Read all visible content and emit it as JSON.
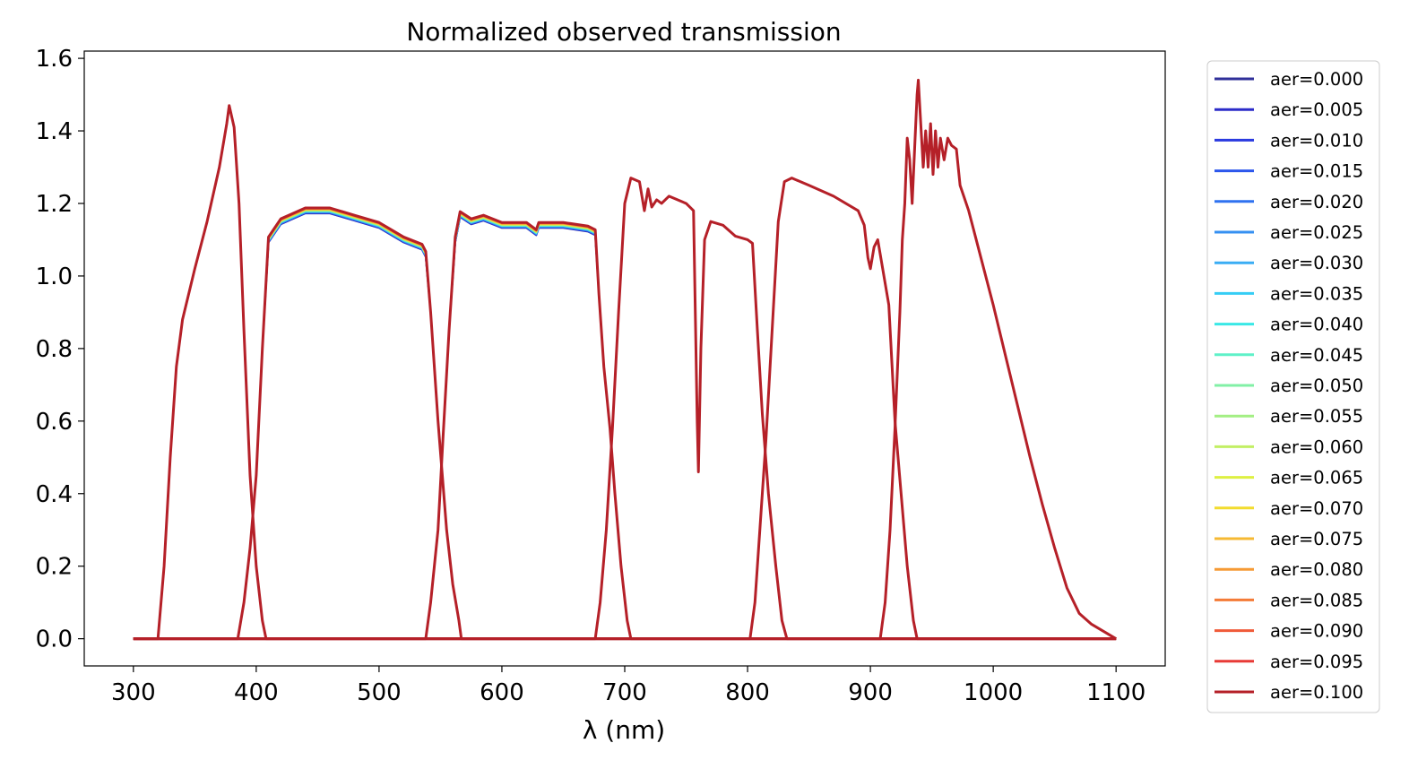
{
  "chart_data": {
    "type": "line",
    "title": "Normalized observed transmission",
    "xlabel": "λ (nm)",
    "ylabel": "",
    "xlim": [
      260,
      1140
    ],
    "ylim": [
      -0.075,
      1.62
    ],
    "xticks": [
      300,
      400,
      500,
      600,
      700,
      800,
      900,
      1000,
      1100
    ],
    "yticks": [
      0.0,
      0.2,
      0.4,
      0.6,
      0.8,
      1.0,
      1.2,
      1.4,
      1.6
    ],
    "xtick_labels": [
      "300",
      "400",
      "500",
      "600",
      "700",
      "800",
      "900",
      "1000",
      "1100"
    ],
    "ytick_labels": [
      "0.0",
      "0.2",
      "0.4",
      "0.6",
      "0.8",
      "1.0",
      "1.2",
      "1.4",
      "1.6"
    ],
    "grid": false,
    "legend_position": "outside-right",
    "legend": [
      {
        "name": "aer=0.000",
        "color": "#30309a"
      },
      {
        "name": "aer=0.005",
        "color": "#2c2cc9"
      },
      {
        "name": "aer=0.010",
        "color": "#2a3ae0"
      },
      {
        "name": "aer=0.015",
        "color": "#2c56ec"
      },
      {
        "name": "aer=0.020",
        "color": "#2f72f0"
      },
      {
        "name": "aer=0.025",
        "color": "#3690f2"
      },
      {
        "name": "aer=0.030",
        "color": "#3aadf4"
      },
      {
        "name": "aer=0.035",
        "color": "#35cdf5"
      },
      {
        "name": "aer=0.040",
        "color": "#3ae8e6"
      },
      {
        "name": "aer=0.045",
        "color": "#5ff1c8"
      },
      {
        "name": "aer=0.050",
        "color": "#82f0a6"
      },
      {
        "name": "aer=0.055",
        "color": "#a3ef84"
      },
      {
        "name": "aer=0.060",
        "color": "#c2ef64"
      },
      {
        "name": "aer=0.065",
        "color": "#def042"
      },
      {
        "name": "aer=0.070",
        "color": "#f2dc2e"
      },
      {
        "name": "aer=0.075",
        "color": "#f6b933"
      },
      {
        "name": "aer=0.080",
        "color": "#f69a35"
      },
      {
        "name": "aer=0.085",
        "color": "#f47b37"
      },
      {
        "name": "aer=0.090",
        "color": "#f05a38"
      },
      {
        "name": "aer=0.095",
        "color": "#e83a36"
      },
      {
        "name": "aer=0.100",
        "color": "#b52028"
      }
    ],
    "curves": [
      {
        "band": "u",
        "points": [
          [
            300,
            0
          ],
          [
            320,
            0
          ],
          [
            325,
            0.2
          ],
          [
            330,
            0.5
          ],
          [
            335,
            0.75
          ],
          [
            340,
            0.88
          ],
          [
            350,
            1.02
          ],
          [
            360,
            1.15
          ],
          [
            370,
            1.3
          ],
          [
            376,
            1.42
          ],
          [
            378,
            1.47
          ],
          [
            382,
            1.41
          ],
          [
            386,
            1.2
          ],
          [
            390,
            0.85
          ],
          [
            395,
            0.45
          ],
          [
            400,
            0.2
          ],
          [
            405,
            0.05
          ],
          [
            408,
            0
          ],
          [
            1100,
            0
          ]
        ]
      },
      {
        "band": "g",
        "points": [
          [
            300,
            0
          ],
          [
            385,
            0
          ],
          [
            390,
            0.1
          ],
          [
            395,
            0.25
          ],
          [
            400,
            0.45
          ],
          [
            405,
            0.8
          ],
          [
            410,
            1.1
          ],
          [
            420,
            1.15
          ],
          [
            440,
            1.18
          ],
          [
            460,
            1.18
          ],
          [
            480,
            1.16
          ],
          [
            500,
            1.14
          ],
          [
            520,
            1.1
          ],
          [
            535,
            1.08
          ],
          [
            538,
            1.06
          ],
          [
            542,
            0.9
          ],
          [
            548,
            0.6
          ],
          [
            555,
            0.3
          ],
          [
            560,
            0.15
          ],
          [
            565,
            0.05
          ],
          [
            567,
            0
          ],
          [
            1100,
            0
          ]
        ]
      },
      {
        "band": "r",
        "points": [
          [
            300,
            0
          ],
          [
            538,
            0
          ],
          [
            542,
            0.1
          ],
          [
            548,
            0.3
          ],
          [
            552,
            0.55
          ],
          [
            557,
            0.85
          ],
          [
            562,
            1.1
          ],
          [
            566,
            1.17
          ],
          [
            575,
            1.15
          ],
          [
            585,
            1.16
          ],
          [
            600,
            1.14
          ],
          [
            620,
            1.14
          ],
          [
            628,
            1.12
          ],
          [
            630,
            1.14
          ],
          [
            650,
            1.14
          ],
          [
            670,
            1.13
          ],
          [
            676,
            1.12
          ],
          [
            679,
            0.95
          ],
          [
            683,
            0.75
          ],
          [
            688,
            0.58
          ],
          [
            692,
            0.4
          ],
          [
            697,
            0.2
          ],
          [
            702,
            0.05
          ],
          [
            705,
            0
          ],
          [
            1100,
            0
          ]
        ]
      },
      {
        "band": "i",
        "points": [
          [
            300,
            0
          ],
          [
            676,
            0
          ],
          [
            680,
            0.1
          ],
          [
            685,
            0.3
          ],
          [
            690,
            0.58
          ],
          [
            695,
            0.9
          ],
          [
            700,
            1.2
          ],
          [
            705,
            1.27
          ],
          [
            712,
            1.26
          ],
          [
            716,
            1.18
          ],
          [
            719,
            1.24
          ],
          [
            722,
            1.19
          ],
          [
            726,
            1.21
          ],
          [
            730,
            1.2
          ],
          [
            736,
            1.22
          ],
          [
            750,
            1.2
          ],
          [
            756,
            1.18
          ],
          [
            759,
            0.6
          ],
          [
            760,
            0.46
          ],
          [
            762,
            0.8
          ],
          [
            765,
            1.1
          ],
          [
            770,
            1.15
          ],
          [
            780,
            1.14
          ],
          [
            790,
            1.11
          ],
          [
            800,
            1.1
          ],
          [
            804,
            1.09
          ],
          [
            808,
            0.85
          ],
          [
            812,
            0.62
          ],
          [
            817,
            0.4
          ],
          [
            823,
            0.2
          ],
          [
            828,
            0.05
          ],
          [
            832,
            0
          ],
          [
            1100,
            0
          ]
        ]
      },
      {
        "band": "z",
        "points": [
          [
            300,
            0
          ],
          [
            802,
            0
          ],
          [
            806,
            0.1
          ],
          [
            810,
            0.3
          ],
          [
            815,
            0.55
          ],
          [
            820,
            0.85
          ],
          [
            825,
            1.15
          ],
          [
            830,
            1.26
          ],
          [
            836,
            1.27
          ],
          [
            850,
            1.25
          ],
          [
            870,
            1.22
          ],
          [
            890,
            1.18
          ],
          [
            895,
            1.14
          ],
          [
            898,
            1.05
          ],
          [
            900,
            1.02
          ],
          [
            903,
            1.08
          ],
          [
            906,
            1.1
          ],
          [
            909,
            1.04
          ],
          [
            912,
            0.98
          ],
          [
            915,
            0.92
          ],
          [
            920,
            0.6
          ],
          [
            925,
            0.4
          ],
          [
            930,
            0.2
          ],
          [
            935,
            0.05
          ],
          [
            938,
            0
          ],
          [
            1100,
            0
          ]
        ]
      },
      {
        "band": "y",
        "points": [
          [
            300,
            0
          ],
          [
            908,
            0
          ],
          [
            912,
            0.1
          ],
          [
            916,
            0.3
          ],
          [
            920,
            0.58
          ],
          [
            924,
            0.9
          ],
          [
            926,
            1.1
          ],
          [
            928,
            1.2
          ],
          [
            930,
            1.38
          ],
          [
            932,
            1.32
          ],
          [
            934,
            1.2
          ],
          [
            936,
            1.35
          ],
          [
            938,
            1.5
          ],
          [
            939,
            1.54
          ],
          [
            941,
            1.42
          ],
          [
            943,
            1.3
          ],
          [
            945,
            1.4
          ],
          [
            947,
            1.3
          ],
          [
            949,
            1.42
          ],
          [
            951,
            1.28
          ],
          [
            953,
            1.4
          ],
          [
            955,
            1.3
          ],
          [
            957,
            1.38
          ],
          [
            960,
            1.32
          ],
          [
            963,
            1.38
          ],
          [
            966,
            1.36
          ],
          [
            970,
            1.35
          ],
          [
            973,
            1.25
          ],
          [
            976,
            1.22
          ],
          [
            980,
            1.18
          ],
          [
            990,
            1.05
          ],
          [
            1000,
            0.92
          ],
          [
            1010,
            0.78
          ],
          [
            1020,
            0.64
          ],
          [
            1030,
            0.5
          ],
          [
            1040,
            0.37
          ],
          [
            1050,
            0.25
          ],
          [
            1060,
            0.14
          ],
          [
            1070,
            0.07
          ],
          [
            1080,
            0.04
          ],
          [
            1090,
            0.02
          ],
          [
            1100,
            0.0
          ]
        ]
      }
    ]
  }
}
